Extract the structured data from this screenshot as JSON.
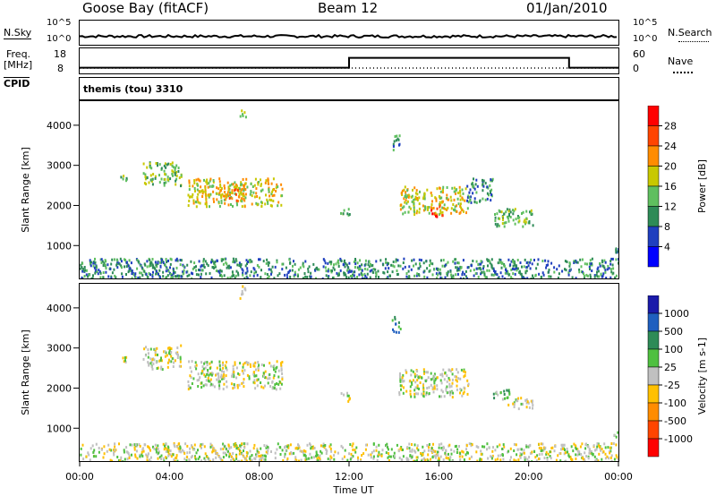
{
  "header": {
    "site": "Goose Bay (fitACF)",
    "beam": "Beam 12",
    "date": "01/Jan/2010"
  },
  "top_panels": {
    "nsky_label": "N.Sky",
    "nsky_ticks": [
      "10^5",
      "10^0"
    ],
    "nsearch_label": "N.Search",
    "nsearch_ticks": [
      "10^5",
      "10^0"
    ],
    "freq_label": "Freq.",
    "freq_unit": "[MHz]",
    "freq_ticks": [
      "18",
      "8"
    ],
    "nave_label": "Nave",
    "nave_ticks": [
      "60",
      "0"
    ],
    "cpid_label": "CPID",
    "cpid_value": "themis (tou) 3310"
  },
  "chart_data": [
    {
      "type": "heatmap",
      "name": "power",
      "ylabel": "Slant Range [km]",
      "ylim": [
        180,
        4600
      ],
      "yticks": [
        1000,
        2000,
        3000,
        4000
      ],
      "xlim": [
        0,
        24
      ],
      "colorbar": {
        "label": "Power [dB]",
        "ticks": [
          "4",
          "8",
          "12",
          "16",
          "20",
          "24",
          "28"
        ],
        "colors": [
          "#0000ff",
          "#1f3fbf",
          "#2e8b57",
          "#5fbf5f",
          "#c8c800",
          "#ff8c00",
          "#ff4500",
          "#ff0000"
        ]
      },
      "regions": [
        {
          "x0": 0.0,
          "x1": 24.0,
          "y0": 200,
          "y1": 700,
          "level": 2
        },
        {
          "x0": 1.8,
          "x1": 2.1,
          "y0": 2650,
          "y1": 2800,
          "level": 3
        },
        {
          "x0": 2.8,
          "x1": 4.5,
          "y0": 2500,
          "y1": 3100,
          "level": 3
        },
        {
          "x0": 4.8,
          "x1": 9.0,
          "y0": 2000,
          "y1": 2700,
          "level": 4
        },
        {
          "x0": 6.4,
          "x1": 7.4,
          "y0": 2150,
          "y1": 2550,
          "level": 5
        },
        {
          "x0": 7.1,
          "x1": 7.4,
          "y0": 4200,
          "y1": 4400,
          "level": 3
        },
        {
          "x0": 11.6,
          "x1": 12.0,
          "y0": 1700,
          "y1": 1950,
          "level": 3
        },
        {
          "x0": 13.9,
          "x1": 14.3,
          "y0": 3400,
          "y1": 3800,
          "level": 2
        },
        {
          "x0": 14.2,
          "x1": 17.3,
          "y0": 1800,
          "y1": 2500,
          "level": 4
        },
        {
          "x0": 15.6,
          "x1": 16.2,
          "y0": 1750,
          "y1": 2000,
          "level": 6
        },
        {
          "x0": 17.2,
          "x1": 18.4,
          "y0": 2100,
          "y1": 2700,
          "level": 2
        },
        {
          "x0": 18.4,
          "x1": 20.2,
          "y0": 1500,
          "y1": 1950,
          "level": 3
        },
        {
          "x0": 23.7,
          "x1": 24.0,
          "y0": 800,
          "y1": 1000,
          "level": 2
        }
      ]
    },
    {
      "type": "heatmap",
      "name": "velocity",
      "xlabel": "Time UT",
      "ylabel": "Slant Range [km]",
      "ylim": [
        180,
        4600
      ],
      "yticks": [
        1000,
        2000,
        3000,
        4000
      ],
      "xlim": [
        0,
        24
      ],
      "xticks": [
        "00:00",
        "04:00",
        "08:00",
        "12:00",
        "16:00",
        "20:00",
        "00:00"
      ],
      "colorbar": {
        "label": "Velocity [m s-1]",
        "ticks": [
          "1000",
          "500",
          "100",
          "25",
          "-25",
          "-100",
          "-500",
          "-1000"
        ],
        "colors": [
          "#1a1aaa",
          "#1f5fbf",
          "#2e8b57",
          "#4fc040",
          "#c0c0c0",
          "#ffc000",
          "#ff8c00",
          "#ff4500",
          "#ff0000"
        ]
      },
      "regions": [
        {
          "x0": 0.0,
          "x1": 24.0,
          "y0": 200,
          "y1": 650,
          "level": 4
        },
        {
          "x0": 1.8,
          "x1": 2.1,
          "y0": 2650,
          "y1": 2800,
          "level": 4
        },
        {
          "x0": 2.8,
          "x1": 4.5,
          "y0": 2500,
          "y1": 3100,
          "level": 4
        },
        {
          "x0": 4.8,
          "x1": 9.0,
          "y0": 2000,
          "y1": 2700,
          "level": 4
        },
        {
          "x0": 7.1,
          "x1": 7.4,
          "y0": 4200,
          "y1": 4600,
          "level": 4
        },
        {
          "x0": 11.6,
          "x1": 12.0,
          "y0": 1700,
          "y1": 1950,
          "level": 4
        },
        {
          "x0": 13.9,
          "x1": 14.3,
          "y0": 3400,
          "y1": 3800,
          "level": 2
        },
        {
          "x0": 14.2,
          "x1": 17.3,
          "y0": 1800,
          "y1": 2500,
          "level": 4
        },
        {
          "x0": 18.4,
          "x1": 19.2,
          "y0": 1750,
          "y1": 2000,
          "level": 3
        },
        {
          "x0": 19.0,
          "x1": 20.2,
          "y0": 1500,
          "y1": 1800,
          "level": 4
        },
        {
          "x0": 23.7,
          "x1": 24.0,
          "y0": 800,
          "y1": 1000,
          "level": 4
        }
      ]
    }
  ],
  "freq_series": {
    "steps": [
      {
        "x0": 0.0,
        "x1": 12.0,
        "value": 10
      },
      {
        "x0": 12.0,
        "x1": 21.8,
        "value": 15
      },
      {
        "x0": 21.8,
        "x1": 24.0,
        "value": 10
      }
    ]
  }
}
